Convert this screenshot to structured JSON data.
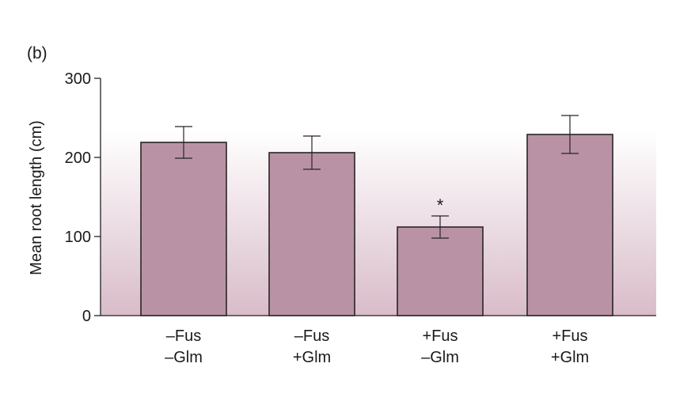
{
  "panel_label": "(b)",
  "colors": {
    "bar_fill": "#b993a5",
    "bar_stroke": "#2a2326",
    "gradient_top": "#ffffff",
    "gradient_bottom": "#d9bcc9",
    "axis": "#222222"
  },
  "chart_data": {
    "type": "bar",
    "ylabel": "Mean root length (cm)",
    "xlabel": "",
    "ylim": [
      0,
      300
    ],
    "yticks": [
      0,
      100,
      200,
      300
    ],
    "categories": [
      {
        "line1": "–Fus",
        "line2": "–Glm"
      },
      {
        "line1": "–Fus",
        "line2": "+Glm"
      },
      {
        "line1": "+Fus",
        "line2": "–Glm"
      },
      {
        "line1": "+Fus",
        "line2": "+Glm"
      }
    ],
    "values": [
      219,
      206,
      112,
      229
    ],
    "errors": [
      20,
      21,
      14,
      24
    ],
    "annotations": [
      {
        "category_index": 2,
        "text": "*"
      }
    ],
    "grid": false,
    "legend": "none"
  }
}
